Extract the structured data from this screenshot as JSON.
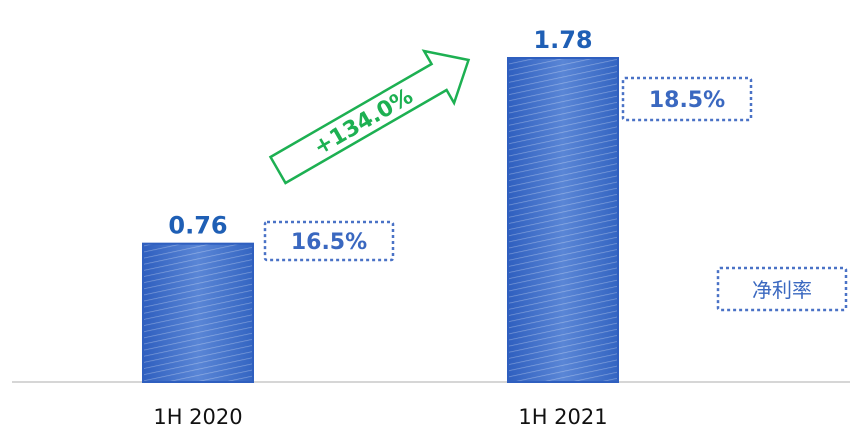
{
  "chart_data": {
    "type": "bar",
    "categories": [
      "1H 2020",
      "1H 2021"
    ],
    "values": [
      0.76,
      1.78
    ],
    "value_labels": [
      "0.76",
      "1.78"
    ],
    "net_margin": [
      "16.5%",
      "18.5%"
    ],
    "growth_label": "+134.0%",
    "legend_label": "净利率",
    "ylim": [
      0,
      1.78
    ],
    "grid": false,
    "legend_position": "right",
    "title": "",
    "xlabel": "",
    "ylabel": ""
  },
  "colors": {
    "bar": "#3f6fc9",
    "bar_border": "#2f5fbf",
    "value_label": "#1f5fb5",
    "margin_box": "#4a72c6",
    "margin_text": "#3a68c0",
    "growth": "#1db052",
    "axis": "#c8c8c8"
  }
}
